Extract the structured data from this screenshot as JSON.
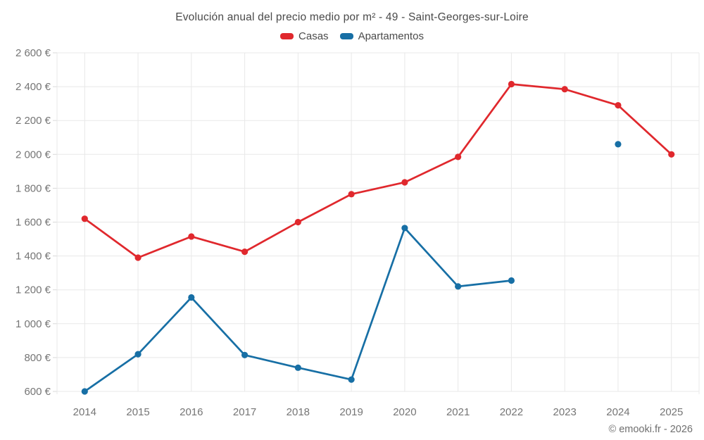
{
  "title": "Evolución anual del precio medio por m² - 49 - Saint-Georges-sur-Loire",
  "footer": "© emooki.fr - 2026",
  "legend": [
    {
      "label": "Casas",
      "color": "#e0282d"
    },
    {
      "label": "Apartamentos",
      "color": "#176fa5"
    }
  ],
  "colors": {
    "casas": "#e0282d",
    "apartamentos": "#176fa5",
    "grid": "#e8e8e8",
    "tick_text": "#757575",
    "title_text": "#4a4a4a"
  },
  "chart_data": {
    "type": "line",
    "title": "Evolución anual del precio medio por m² - 49 - Saint-Georges-sur-Loire",
    "categories": [
      "2014",
      "2015",
      "2016",
      "2017",
      "2018",
      "2019",
      "2020",
      "2021",
      "2022",
      "2023",
      "2024",
      "2025"
    ],
    "series": [
      {
        "name": "Casas",
        "color": "#e0282d",
        "values": [
          1620,
          1390,
          1515,
          1425,
          1600,
          1765,
          1835,
          1985,
          2415,
          2385,
          2290,
          2000
        ]
      },
      {
        "name": "Apartamentos",
        "color": "#176fa5",
        "values": [
          600,
          820,
          1155,
          815,
          740,
          670,
          1565,
          1220,
          1255,
          null,
          2060,
          null
        ]
      }
    ],
    "xlabel": "",
    "ylabel": "",
    "ylim": [
      600,
      2600
    ],
    "ytick_step": 200,
    "ytick_suffix": " €",
    "grid": true,
    "legend_position": "top"
  }
}
